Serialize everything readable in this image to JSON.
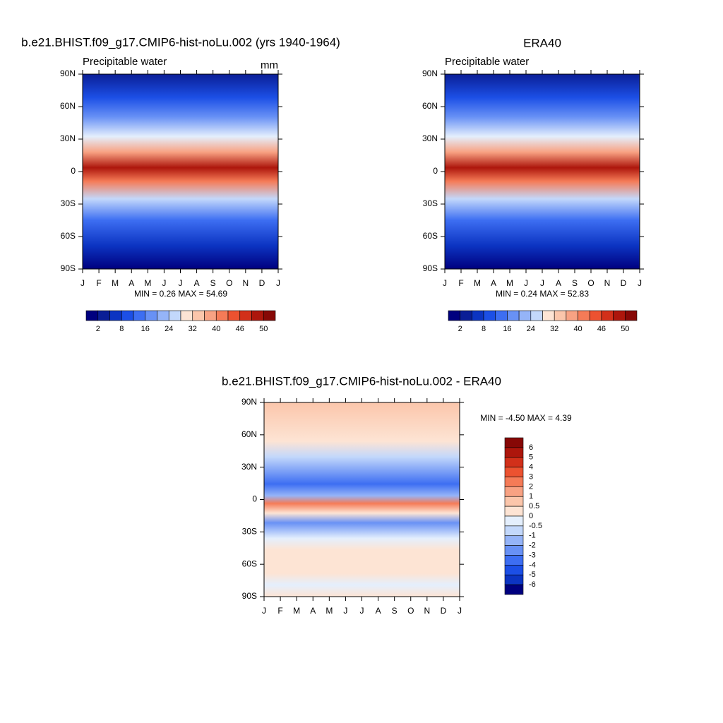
{
  "chart_data": [
    {
      "type": "contour",
      "title": "b.e21.BHIST.f09_g17.CMIP6-hist-noLu.002 (yrs 1940-1964)",
      "subtitle": "Precipitable water",
      "units": "mm",
      "annotation": "MIN =   0.26 MAX =  54.69",
      "categories": [
        "J",
        "F",
        "M",
        "A",
        "M",
        "J",
        "J",
        "A",
        "S",
        "O",
        "N",
        "D",
        "J"
      ],
      "ylim": [
        -90,
        90
      ],
      "yticks": [
        {
          "value": 90,
          "label": "90N"
        },
        {
          "value": 60,
          "label": "60N"
        },
        {
          "value": 30,
          "label": "30N"
        },
        0,
        {
          "value": -30,
          "label": "30S"
        },
        {
          "value": -60,
          "label": "60S"
        },
        {
          "value": -90,
          "label": "90S"
        }
      ],
      "colorbar_labels": [
        2,
        8,
        16,
        24,
        32,
        40,
        46,
        50
      ],
      "colors": [
        "#00007f",
        "#0a1e96",
        "#0c34c2",
        "#1c4fe6",
        "#3d6ef2",
        "#6891f5",
        "#95b4f8",
        "#c3d8fb",
        "#fde4d4",
        "#fbc6ab",
        "#f8a283",
        "#f57b57",
        "#ec5230",
        "#d2301a",
        "#ad160c",
        "#870806"
      ]
    },
    {
      "type": "contour",
      "title": "ERA40",
      "subtitle": "Precipitable water",
      "annotation": "MIN =   0.24 MAX =  52.83",
      "categories": [
        "J",
        "F",
        "M",
        "A",
        "M",
        "J",
        "J",
        "A",
        "S",
        "O",
        "N",
        "D",
        "J"
      ],
      "ylim": [
        -90,
        90
      ],
      "yticks": [
        {
          "value": 90,
          "label": "90N"
        },
        {
          "value": 60,
          "label": "60N"
        },
        {
          "value": 30,
          "label": "30N"
        },
        0,
        {
          "value": -30,
          "label": "30S"
        },
        {
          "value": -60,
          "label": "60S"
        },
        {
          "value": -90,
          "label": "90S"
        }
      ],
      "colorbar_labels": [
        2,
        8,
        16,
        24,
        32,
        40,
        46,
        50
      ],
      "colors": [
        "#00007f",
        "#0a1e96",
        "#0c34c2",
        "#1c4fe6",
        "#3d6ef2",
        "#6891f5",
        "#95b4f8",
        "#c3d8fb",
        "#fde4d4",
        "#fbc6ab",
        "#f8a283",
        "#f57b57",
        "#ec5230",
        "#d2301a",
        "#ad160c",
        "#870806"
      ]
    },
    {
      "type": "contour",
      "title": "b.e21.BHIST.f09_g17.CMIP6-hist-noLu.002 - ERA40",
      "annotation": "MIN =  -4.50 MAX =   4.39",
      "categories": [
        "J",
        "F",
        "M",
        "A",
        "M",
        "J",
        "J",
        "A",
        "S",
        "O",
        "N",
        "D",
        "J"
      ],
      "ylim": [
        -90,
        90
      ],
      "yticks": [
        {
          "value": 90,
          "label": "90N"
        },
        {
          "value": 60,
          "label": "60N"
        },
        {
          "value": 30,
          "label": "30N"
        },
        0,
        {
          "value": -30,
          "label": "30S"
        },
        {
          "value": -60,
          "label": "60S"
        },
        {
          "value": -90,
          "label": "90S"
        }
      ],
      "colorbar_labels": [
        6,
        5,
        4,
        3,
        2,
        1,
        0.5,
        0,
        -0.5,
        -1,
        -2,
        -3,
        -4,
        -5,
        -6
      ],
      "colors": [
        "#870806",
        "#ad160c",
        "#d2301a",
        "#ec5230",
        "#f57b57",
        "#f8a283",
        "#fbc6ab",
        "#fde4d4",
        "#e4effd",
        "#c3d8fb",
        "#95b4f8",
        "#6891f5",
        "#3d6ef2",
        "#1c4fe6",
        "#0c34c2",
        "#00007f"
      ]
    }
  ]
}
